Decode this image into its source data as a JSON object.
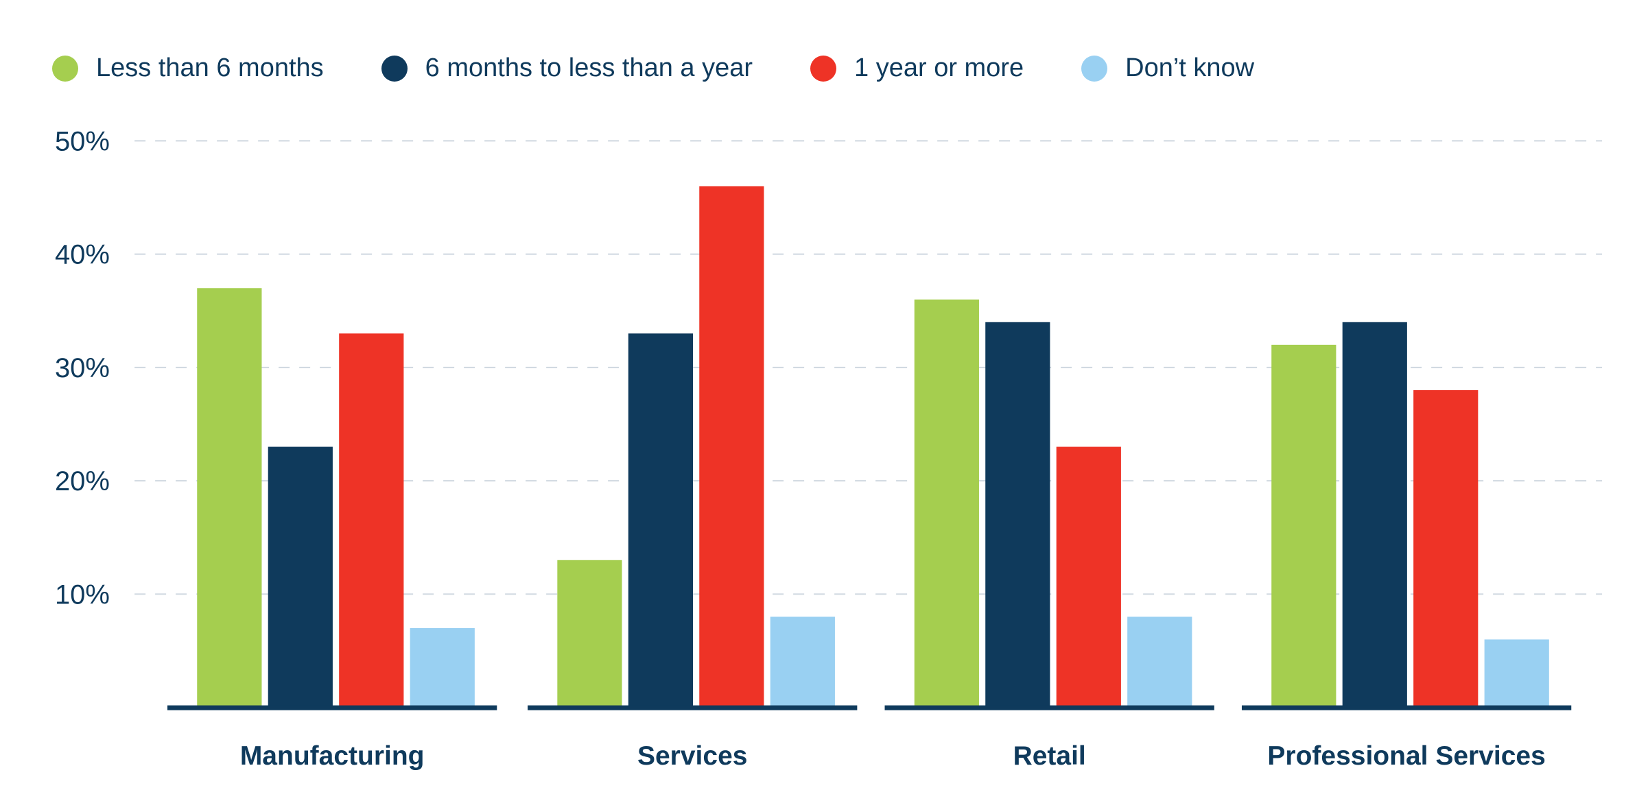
{
  "chart_data": {
    "type": "bar",
    "title": "",
    "xlabel": "",
    "ylabel": "",
    "ylim": [
      0,
      50
    ],
    "yticks": [
      10,
      20,
      30,
      40,
      50
    ],
    "ytick_labels": [
      "10%",
      "20%",
      "30%",
      "40%",
      "50%"
    ],
    "grid": true,
    "legend_position": "top-left",
    "categories": [
      "Manufacturing",
      "Services",
      "Retail",
      "Professional Services"
    ],
    "series": [
      {
        "name": "Less than 6 months",
        "color": "#a5ce4f",
        "values": [
          37,
          13,
          36,
          32
        ]
      },
      {
        "name": "6 months to less than a year",
        "color": "#0f3a5c",
        "values": [
          23,
          33,
          34,
          34
        ]
      },
      {
        "name": "1 year or more",
        "color": "#ee3326",
        "values": [
          33,
          46,
          23,
          28
        ]
      },
      {
        "name": "Don’t know",
        "color": "#99d0f2",
        "values": [
          7,
          8,
          8,
          6
        ]
      }
    ]
  },
  "colors": {
    "text": "#0f3a5c",
    "grid": "#cfd8e0",
    "axis": "#0f3a5c"
  }
}
